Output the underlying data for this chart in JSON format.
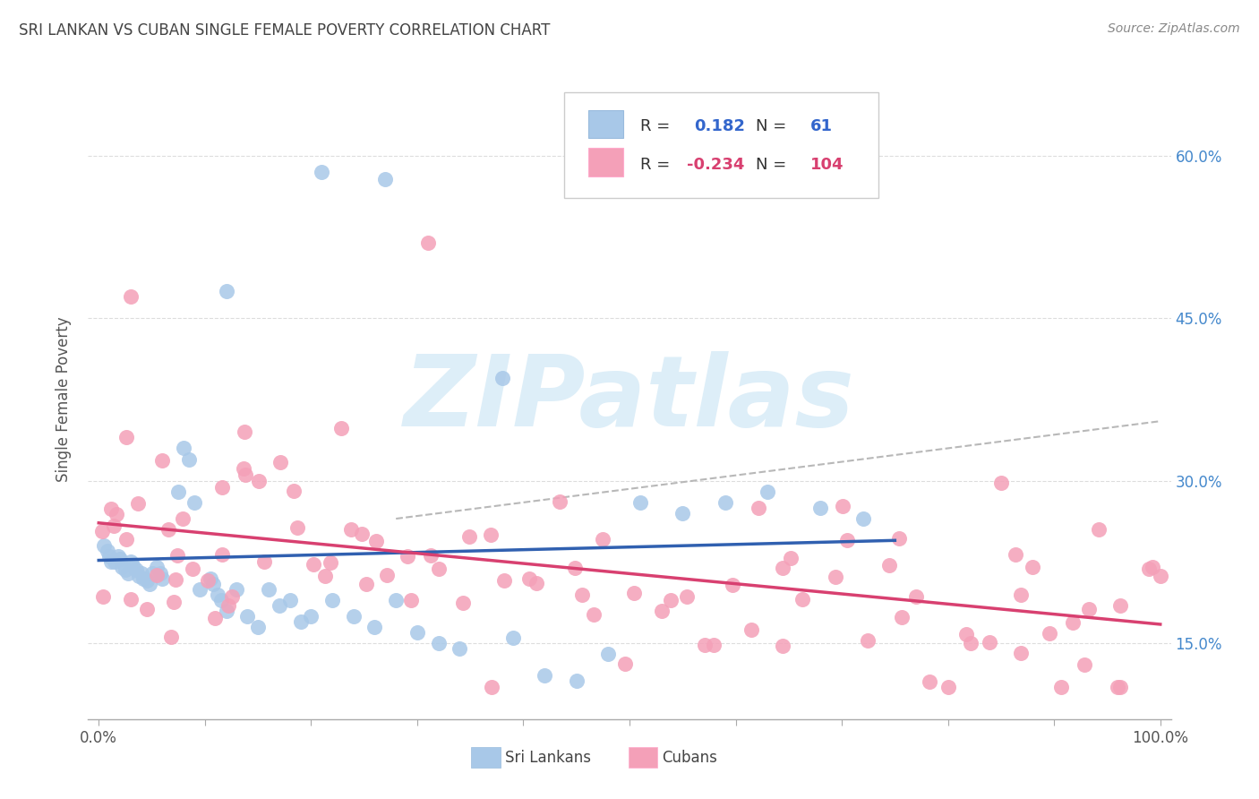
{
  "title": "SRI LANKAN VS CUBAN SINGLE FEMALE POVERTY CORRELATION CHART",
  "source": "Source: ZipAtlas.com",
  "ylabel": "Single Female Poverty",
  "yticks": [
    0.15,
    0.3,
    0.45,
    0.6
  ],
  "ytick_labels": [
    "15.0%",
    "30.0%",
    "45.0%",
    "60.0%"
  ],
  "xticks": [
    0.0,
    0.1,
    0.2,
    0.3,
    0.4,
    0.5,
    0.6,
    0.7,
    0.8,
    0.9,
    1.0
  ],
  "xtick_labels": [
    "0.0%",
    "",
    "",
    "",
    "",
    "",
    "",
    "",
    "",
    "",
    "100.0%"
  ],
  "xlim": [
    -0.01,
    1.01
  ],
  "ylim": [
    0.08,
    0.67
  ],
  "sri_lanka_R": 0.182,
  "sri_lanka_N": 61,
  "cuba_R": -0.234,
  "cuba_N": 104,
  "sri_lanka_color": "#a8c8e8",
  "cuba_color": "#f4a0b8",
  "sri_lanka_line_color": "#3060b0",
  "cuba_line_color": "#d84070",
  "trend_line_color": "#b8b8b8",
  "background_color": "#ffffff",
  "watermark_color": "#ddeef8",
  "grid_color": "#dddddd"
}
